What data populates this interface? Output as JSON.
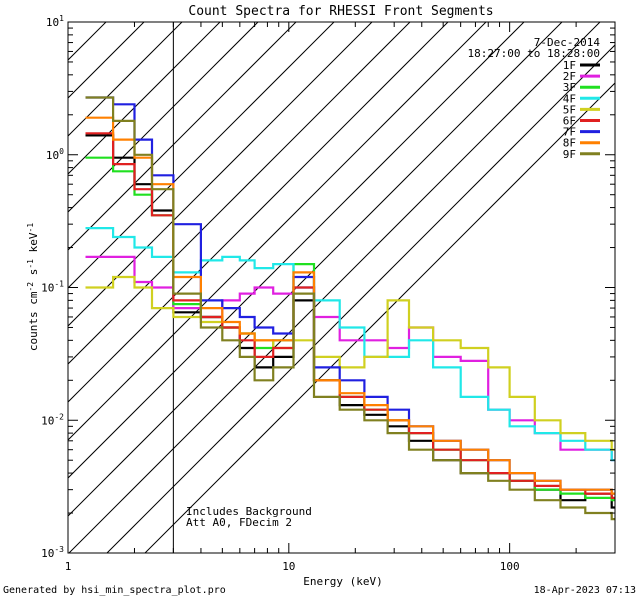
{
  "chart_data": {
    "type": "line",
    "title": "Count Spectra for RHESSI Front Segments",
    "xlabel": "Energy (keV)",
    "ylabel": "counts cm^-2 s^-1 keV^-1",
    "xscale": "log",
    "yscale": "log",
    "xlim": [
      1,
      300
    ],
    "ylim": [
      0.001,
      10
    ],
    "x_tick_labels": [
      "1",
      "10",
      "100"
    ],
    "y_tick_labels": [
      "10^-3",
      "10^-2",
      "10^-1",
      "10^0",
      "10^1"
    ],
    "date": "7-Dec-2014",
    "time_range": "18:27:00 to 18:28:00",
    "hatched_region_xmax": 3,
    "annotations": [
      "Includes Background",
      "Att A0, FDecim 2"
    ],
    "series": [
      {
        "name": "1F",
        "color": "#000000",
        "x": [
          1.2,
          1.6,
          2.0,
          2.4,
          3.0,
          4.0,
          5.0,
          6.0,
          7.0,
          8.5,
          10.5,
          13.0,
          17.0,
          22.0,
          28.0,
          35.0,
          45.0,
          60.0,
          80.0,
          100.0,
          130.0,
          170.0,
          220.0,
          290.0
        ],
        "y": [
          1.4,
          0.95,
          0.6,
          0.38,
          0.065,
          0.06,
          0.05,
          0.035,
          0.025,
          0.03,
          0.08,
          0.02,
          0.013,
          0.011,
          0.009,
          0.007,
          0.005,
          0.004,
          0.004,
          0.0035,
          0.003,
          0.0025,
          0.0028,
          0.0022
        ]
      },
      {
        "name": "2F",
        "color": "#e020e0",
        "x": [
          1.2,
          1.6,
          2.0,
          2.4,
          3.0,
          4.0,
          5.0,
          6.0,
          7.0,
          8.5,
          10.5,
          13.0,
          17.0,
          22.0,
          28.0,
          35.0,
          45.0,
          60.0,
          80.0,
          100.0,
          130.0,
          170.0,
          220.0,
          290.0
        ],
        "y": [
          0.17,
          0.17,
          0.11,
          0.1,
          0.07,
          0.06,
          0.08,
          0.09,
          0.1,
          0.09,
          0.1,
          0.06,
          0.04,
          0.04,
          0.035,
          0.05,
          0.03,
          0.028,
          0.012,
          0.01,
          0.008,
          0.006,
          0.006,
          0.005
        ]
      },
      {
        "name": "3F",
        "color": "#20e020",
        "x": [
          1.2,
          1.6,
          2.0,
          2.4,
          3.0,
          4.0,
          5.0,
          6.0,
          7.0,
          8.5,
          10.5,
          13.0,
          17.0,
          22.0,
          28.0,
          35.0,
          45.0,
          60.0,
          80.0,
          100.0,
          130.0,
          170.0,
          220.0,
          290.0
        ],
        "y": [
          0.95,
          0.75,
          0.5,
          0.35,
          0.075,
          0.06,
          0.05,
          0.045,
          0.035,
          0.04,
          0.15,
          0.02,
          0.015,
          0.012,
          0.01,
          0.008,
          0.006,
          0.005,
          0.004,
          0.0035,
          0.003,
          0.0028,
          0.0026,
          0.0025
        ]
      },
      {
        "name": "4F",
        "color": "#20e8e8",
        "x": [
          1.2,
          1.6,
          2.0,
          2.4,
          3.0,
          4.0,
          5.0,
          6.0,
          7.0,
          8.5,
          10.5,
          13.0,
          17.0,
          22.0,
          28.0,
          35.0,
          45.0,
          60.0,
          80.0,
          100.0,
          130.0,
          170.0,
          220.0,
          290.0
        ],
        "y": [
          0.28,
          0.24,
          0.2,
          0.17,
          0.13,
          0.16,
          0.17,
          0.16,
          0.14,
          0.15,
          0.1,
          0.08,
          0.05,
          0.03,
          0.03,
          0.04,
          0.025,
          0.015,
          0.012,
          0.009,
          0.008,
          0.007,
          0.006,
          0.005
        ]
      },
      {
        "name": "5F",
        "color": "#d0d020",
        "x": [
          1.2,
          1.6,
          2.0,
          2.4,
          3.0,
          4.0,
          5.0,
          6.0,
          7.0,
          8.5,
          10.5,
          13.0,
          17.0,
          22.0,
          28.0,
          35.0,
          45.0,
          60.0,
          80.0,
          100.0,
          130.0,
          170.0,
          220.0,
          290.0
        ],
        "y": [
          0.1,
          0.12,
          0.1,
          0.07,
          0.06,
          0.055,
          0.05,
          0.045,
          0.04,
          0.035,
          0.04,
          0.03,
          0.025,
          0.03,
          0.08,
          0.05,
          0.04,
          0.035,
          0.025,
          0.015,
          0.01,
          0.008,
          0.007,
          0.006
        ]
      },
      {
        "name": "6F",
        "color": "#e02020",
        "x": [
          1.2,
          1.6,
          2.0,
          2.4,
          3.0,
          4.0,
          5.0,
          6.0,
          7.0,
          8.5,
          10.5,
          13.0,
          17.0,
          22.0,
          28.0,
          35.0,
          45.0,
          60.0,
          80.0,
          100.0,
          130.0,
          170.0,
          220.0,
          290.0
        ],
        "y": [
          1.45,
          0.85,
          0.55,
          0.35,
          0.08,
          0.06,
          0.05,
          0.04,
          0.03,
          0.035,
          0.1,
          0.02,
          0.015,
          0.012,
          0.01,
          0.008,
          0.006,
          0.005,
          0.004,
          0.0035,
          0.0032,
          0.003,
          0.0028,
          0.0026
        ]
      },
      {
        "name": "7F",
        "color": "#2020e0",
        "x": [
          1.2,
          1.6,
          2.0,
          2.4,
          3.0,
          4.0,
          5.0,
          6.0,
          7.0,
          8.5,
          10.5,
          13.0,
          17.0,
          22.0,
          28.0,
          35.0,
          45.0,
          60.0,
          80.0,
          100.0,
          130.0,
          170.0,
          220.0,
          290.0
        ],
        "y": [
          2.7,
          2.4,
          1.3,
          0.7,
          0.3,
          0.08,
          0.07,
          0.06,
          0.05,
          0.045,
          0.12,
          0.025,
          0.02,
          0.015,
          0.012,
          0.009,
          0.007,
          0.006,
          0.005,
          0.004,
          0.0035,
          0.003,
          0.003,
          0.0028
        ]
      },
      {
        "name": "8F",
        "color": "#ff8000",
        "x": [
          1.2,
          1.6,
          2.0,
          2.4,
          3.0,
          4.0,
          5.0,
          6.0,
          7.0,
          8.5,
          10.5,
          13.0,
          17.0,
          22.0,
          28.0,
          35.0,
          45.0,
          60.0,
          80.0,
          100.0,
          130.0,
          170.0,
          220.0,
          290.0
        ],
        "y": [
          1.9,
          1.3,
          0.95,
          0.6,
          0.12,
          0.07,
          0.055,
          0.045,
          0.04,
          0.04,
          0.13,
          0.02,
          0.016,
          0.013,
          0.01,
          0.009,
          0.007,
          0.006,
          0.005,
          0.004,
          0.0035,
          0.003,
          0.003,
          0.0028
        ]
      },
      {
        "name": "9F",
        "color": "#808020",
        "x": [
          1.2,
          1.6,
          2.0,
          2.4,
          3.0,
          4.0,
          5.0,
          6.0,
          7.0,
          8.5,
          10.5,
          13.0,
          17.0,
          22.0,
          28.0,
          35.0,
          45.0,
          60.0,
          80.0,
          100.0,
          130.0,
          170.0,
          220.0,
          290.0
        ],
        "y": [
          2.7,
          1.8,
          1.0,
          0.55,
          0.09,
          0.05,
          0.04,
          0.03,
          0.02,
          0.025,
          0.09,
          0.015,
          0.012,
          0.01,
          0.008,
          0.006,
          0.005,
          0.004,
          0.0035,
          0.003,
          0.0025,
          0.0022,
          0.002,
          0.0018
        ]
      }
    ]
  },
  "footer": {
    "left": "Generated by hsi_min_spectra_plot.pro",
    "right": "18-Apr-2023 07:13"
  }
}
